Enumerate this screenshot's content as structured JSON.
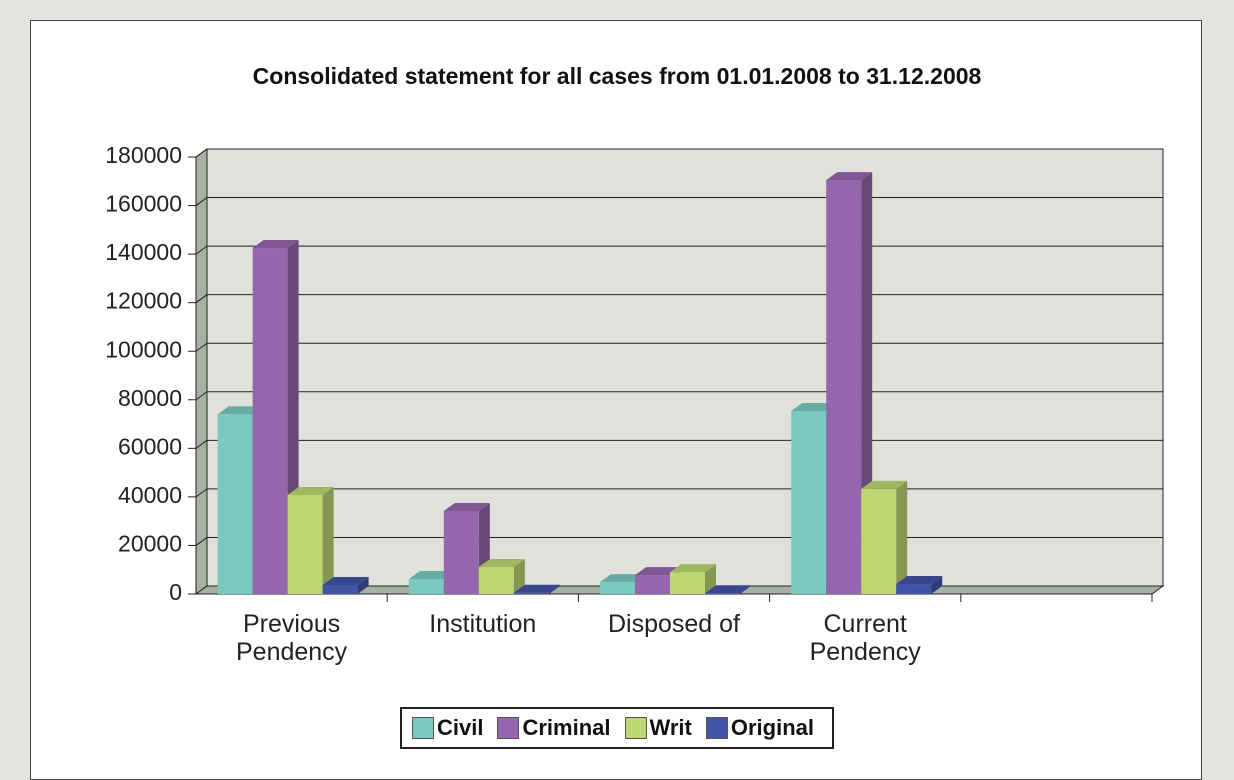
{
  "chart_data": {
    "type": "bar3d",
    "title": "Consolidated statement for all cases from 01.01.2008 to 31.12.2008",
    "categories": [
      "Previous Pendency",
      "Institution",
      "Disposed of",
      "Current Pendency",
      null
    ],
    "series": [
      {
        "name": "Civil",
        "color": "#79c9c0",
        "values": [
          74000,
          6200,
          4900,
          75400,
          null
        ]
      },
      {
        "name": "Criminal",
        "color": "#9566ad",
        "values": [
          142500,
          34200,
          7800,
          170500,
          null
        ]
      },
      {
        "name": "Writ",
        "color": "#bcd672",
        "values": [
          40800,
          11100,
          9000,
          43300,
          null
        ]
      },
      {
        "name": "Original",
        "color": "#4254a6",
        "values": [
          3700,
          500,
          300,
          4100,
          null
        ]
      }
    ],
    "ylim": [
      0,
      180000
    ],
    "yticks": [
      0,
      20000,
      40000,
      60000,
      80000,
      100000,
      120000,
      140000,
      160000,
      180000
    ],
    "grid": true,
    "legend": "bottom"
  }
}
